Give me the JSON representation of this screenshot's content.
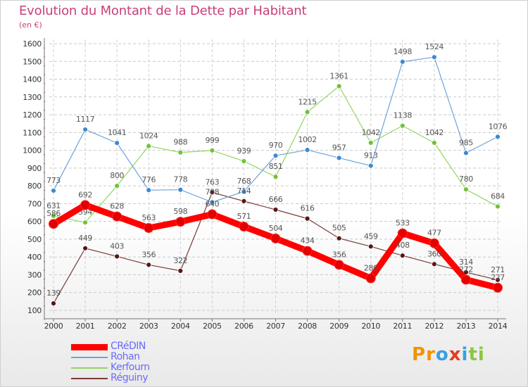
{
  "title": "Evolution du Montant de la Dette par Habitant",
  "subtitle": "(en €)",
  "logo": {
    "letters": [
      "P",
      "r",
      "o",
      "x",
      "i",
      "t",
      "i"
    ],
    "colors": [
      "#f39200",
      "#f39200",
      "#3aa0e0",
      "#e33d22",
      "#3aa0e0",
      "#8cc63f",
      "#8cc63f"
    ]
  },
  "chart_data": {
    "type": "line",
    "title": "Evolution du Montant de la Dette par Habitant",
    "ylabel": "(en €)",
    "xlabel": "",
    "ylim": [
      100,
      1600
    ],
    "yticks": [
      "100",
      "200",
      "300",
      "400",
      "500",
      "600",
      "700",
      "800",
      "900",
      "1000",
      "1100",
      "1200",
      "1300",
      "1400",
      "1500",
      "1600"
    ],
    "x": [
      "2000",
      "2001",
      "2002",
      "2003",
      "2004",
      "2005",
      "2006",
      "2007",
      "2008",
      "2009",
      "2010",
      "2011",
      "2012",
      "2013",
      "2014"
    ],
    "grid": true,
    "legend_position": "bottom-left",
    "series": [
      {
        "name": "CRéDIN",
        "color": "#ff0000",
        "point_color": "#e30000",
        "width": 9,
        "values": [
          586,
          692,
          628,
          563,
          598,
          640,
          571,
          504,
          434,
          356,
          280,
          533,
          477,
          272,
          227
        ],
        "labels": [
          "586",
          "692",
          "628",
          "563",
          "598",
          "640",
          "571",
          "504",
          "434",
          "356",
          "280",
          "533",
          "477",
          "272",
          "227"
        ]
      },
      {
        "name": "Rohan",
        "color": "#6ea3d8",
        "point_color": "#3d8ad0",
        "width": 1.2,
        "values": [
          773,
          1117,
          1041,
          776,
          778,
          708,
          768,
          970,
          1002,
          957,
          913,
          1498,
          1524,
          985,
          1076
        ],
        "labels": [
          "773",
          "1117",
          "1041",
          "776",
          "778",
          "708",
          "768",
          "970",
          "1002",
          "957",
          "913",
          "1498",
          "1524",
          "985",
          "1076"
        ]
      },
      {
        "name": "Kerfourn",
        "color": "#92d65e",
        "point_color": "#6fc33a",
        "width": 1.2,
        "values": [
          631,
          594,
          800,
          1024,
          988,
          999,
          939,
          851,
          1215,
          1361,
          1042,
          1138,
          1042,
          780,
          684
        ],
        "labels": [
          "631",
          "594",
          "800",
          "1024",
          "988",
          "999",
          "939",
          "851",
          "1215",
          "1361",
          "1042",
          "1138",
          "1042",
          "780",
          "684"
        ]
      },
      {
        "name": "Réguiny",
        "color": "#7a3a3a",
        "point_color": "#5a1616",
        "width": 1.2,
        "values": [
          139,
          449,
          403,
          356,
          322,
          763,
          714,
          666,
          616,
          505,
          459,
          408,
          360,
          314,
          271
        ],
        "labels": [
          "139",
          "449",
          "403",
          "356",
          "322",
          "763",
          "714",
          "666",
          "616",
          "505",
          "459",
          "408",
          "360",
          "314",
          "271"
        ]
      }
    ]
  }
}
